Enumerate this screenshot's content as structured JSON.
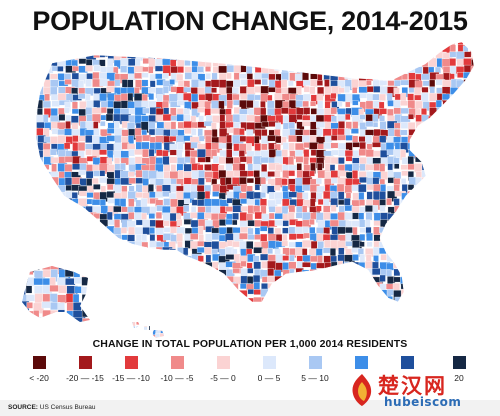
{
  "title": "POPULATION CHANGE, 2014-2015",
  "legend": {
    "title": "CHANGE IN TOTAL POPULATION PER 1,000 2014 RESIDENTS",
    "items": [
      {
        "label": "< -20",
        "color": "#5c0a0a"
      },
      {
        "label": "-20 — -15",
        "color": "#a3191c"
      },
      {
        "label": "-15 — -10",
        "color": "#e23a3c"
      },
      {
        "label": "-10 — -5",
        "color": "#f08a8a"
      },
      {
        "label": "-5 — 0",
        "color": "#fbd3d3"
      },
      {
        "label": "0 — 5",
        "color": "#dce8fb"
      },
      {
        "label": "5 — 10",
        "color": "#a9c8f3"
      },
      {
        "label": "",
        "color": "#3d8ee8"
      },
      {
        "label": "",
        "color": "#1f4f9c"
      },
      {
        "label": "20",
        "color": "#152844"
      }
    ]
  },
  "source": {
    "label": "SOURCE:",
    "text": "US Census Bureau"
  },
  "watermark": {
    "cn": "楚汉网",
    "en": "hubeiscom"
  }
}
